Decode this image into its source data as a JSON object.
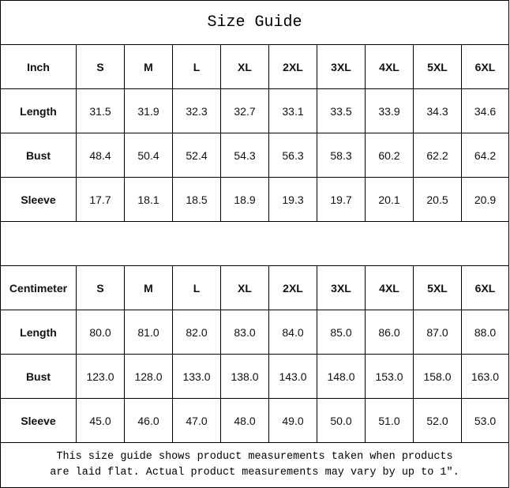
{
  "title": "Size Guide",
  "sizes": [
    "S",
    "M",
    "L",
    "XL",
    "2XL",
    "3XL",
    "4XL",
    "5XL",
    "6XL"
  ],
  "inch": {
    "unit": "Inch",
    "rows": [
      {
        "label": "Length",
        "values": [
          "31.5",
          "31.9",
          "32.3",
          "32.7",
          "33.1",
          "33.5",
          "33.9",
          "34.3",
          "34.6"
        ]
      },
      {
        "label": "Bust",
        "values": [
          "48.4",
          "50.4",
          "52.4",
          "54.3",
          "56.3",
          "58.3",
          "60.2",
          "62.2",
          "64.2"
        ]
      },
      {
        "label": "Sleeve",
        "values": [
          "17.7",
          "18.1",
          "18.5",
          "18.9",
          "19.3",
          "19.7",
          "20.1",
          "20.5",
          "20.9"
        ]
      }
    ]
  },
  "centimeter": {
    "unit": "Centimeter",
    "rows": [
      {
        "label": "Length",
        "values": [
          "80.0",
          "81.0",
          "82.0",
          "83.0",
          "84.0",
          "85.0",
          "86.0",
          "87.0",
          "88.0"
        ]
      },
      {
        "label": "Bust",
        "values": [
          "123.0",
          "128.0",
          "133.0",
          "138.0",
          "143.0",
          "148.0",
          "153.0",
          "158.0",
          "163.0"
        ]
      },
      {
        "label": "Sleeve",
        "values": [
          "45.0",
          "46.0",
          "47.0",
          "48.0",
          "49.0",
          "50.0",
          "51.0",
          "52.0",
          "53.0"
        ]
      }
    ]
  },
  "note": {
    "line1": "This size guide shows product measurements taken when products",
    "line2": "are laid flat. Actual product measurements may vary by up to 1″."
  }
}
